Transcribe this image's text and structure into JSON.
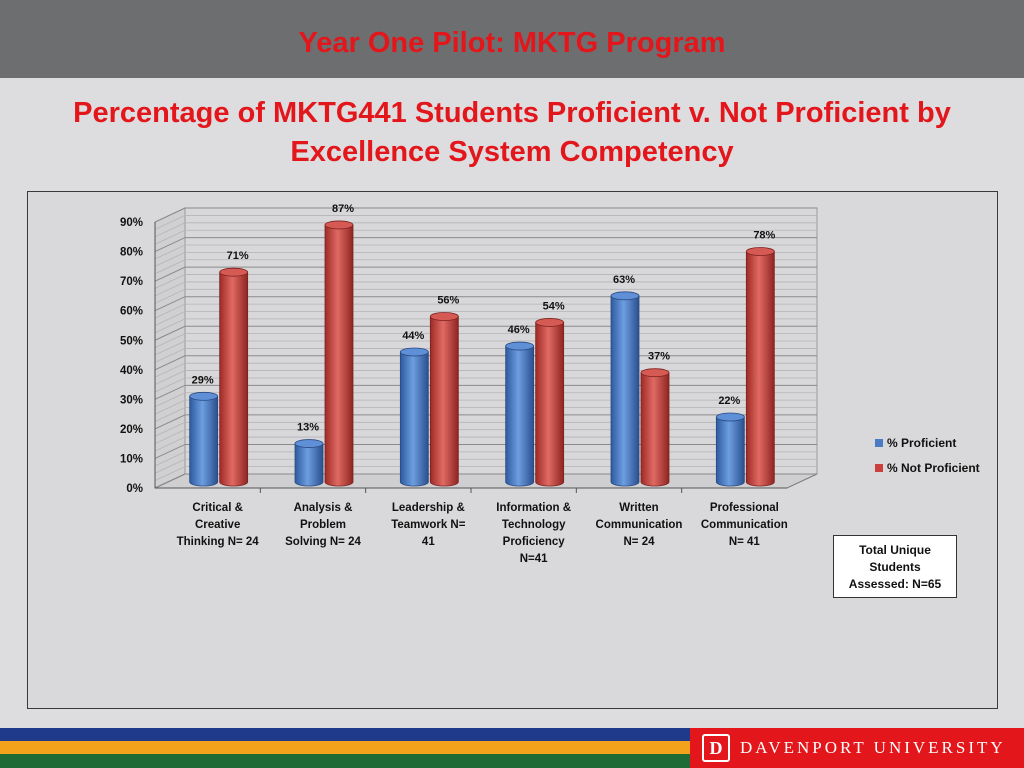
{
  "slide": {
    "title": "Year One Pilot: MKTG Program",
    "heading": "Percentage of MKTG441 Students Proficient v. Not Proficient by Excellence System Competency",
    "note": "Total Unique\nStudents\nAssessed: N=65",
    "logo_text": "DAVENPORT UNIVERSITY",
    "logo_mark": "D",
    "colors": {
      "title_red": "#e3161b",
      "header_gray": "#6c6e70",
      "stripe_blue": "#1f3a8a",
      "stripe_orange": "#f2a31b",
      "stripe_green": "#1e6b36"
    }
  },
  "chart_data": {
    "type": "bar",
    "categories": [
      "Critical &\nCreative\nThinking N= 24",
      "Analysis &\nProblem\nSolving N= 24",
      "Leadership &\nTeamwork  N=\n41",
      "Information &\nTechnology\nProficiency\nN=41",
      "Written\nCommunication\nN= 24",
      "Professional\nCommunication\nN= 41"
    ],
    "series": [
      {
        "name": "% Proficient",
        "values": [
          29,
          13,
          44,
          46,
          63,
          22
        ],
        "labels": [
          "29%",
          "13%",
          "44%",
          "46%",
          "63%",
          "22%"
        ],
        "color": "#4a7cc4"
      },
      {
        "name": "% Not Proficient",
        "values": [
          71,
          87,
          56,
          54,
          37,
          78
        ],
        "labels": [
          "71%",
          "87%",
          "56%",
          "54%",
          "37%",
          "78%"
        ],
        "color": "#c9403c"
      }
    ],
    "yticks": [
      "0%",
      "10%",
      "20%",
      "30%",
      "40%",
      "50%",
      "60%",
      "70%",
      "80%",
      "90%"
    ],
    "ylim": [
      0,
      90
    ],
    "grid": true,
    "legend_position": "right",
    "style": "3d-cylinder"
  }
}
